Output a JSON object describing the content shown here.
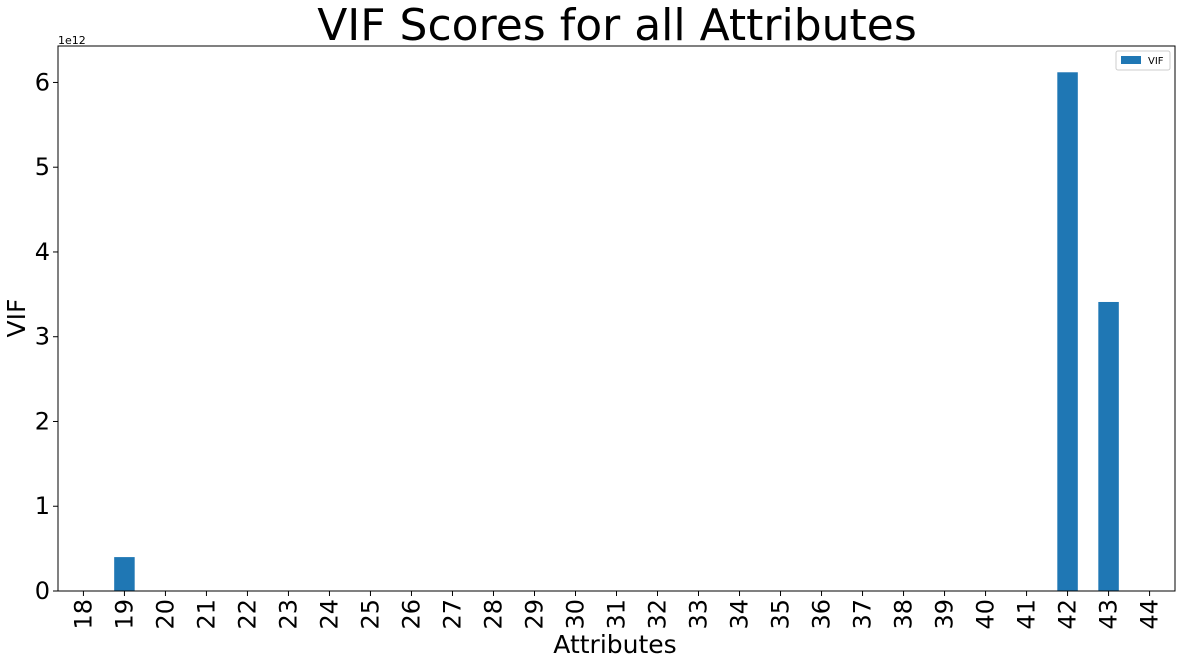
{
  "chart_data": {
    "type": "bar",
    "title": "VIF Scores for all Attributes",
    "xlabel": "Attributes",
    "ylabel": "VIF",
    "y_offset_label": "1e12",
    "y_scale": 1000000000000.0,
    "ylim": [
      0,
      6.43
    ],
    "yticks": [
      "0",
      "1",
      "2",
      "3",
      "4",
      "5",
      "6"
    ],
    "grid": false,
    "legend_position": "top-right",
    "categories": [
      "18",
      "19",
      "20",
      "21",
      "22",
      "23",
      "24",
      "25",
      "26",
      "27",
      "28",
      "29",
      "30",
      "31",
      "32",
      "33",
      "34",
      "35",
      "36",
      "37",
      "38",
      "39",
      "40",
      "41",
      "42",
      "43",
      "44"
    ],
    "series": [
      {
        "name": "VIF",
        "color": "#1f77b4",
        "values": [
          0.0,
          0.4,
          0.0,
          0.0,
          0.0,
          0.0,
          0.0,
          0.0,
          0.0,
          0.0,
          0.0,
          0.0,
          0.0,
          0.0,
          0.0,
          0.0,
          0.0,
          0.0,
          0.0,
          0.0,
          0.0,
          0.0,
          0.0,
          0.0,
          6.12,
          3.41,
          0.0
        ]
      }
    ]
  }
}
